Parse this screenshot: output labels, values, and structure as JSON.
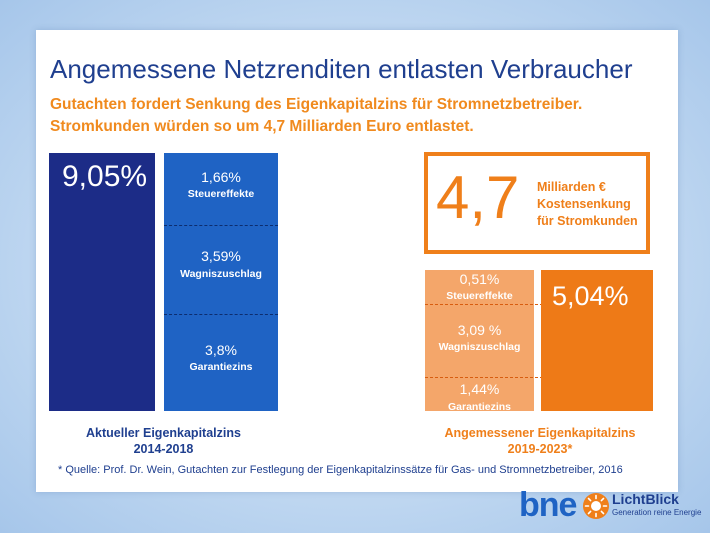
{
  "title": "Angemessene Netzrenditen entlasten Verbraucher",
  "subtitle_lines": [
    "Gutachten fordert Senkung des Eigenkapitalzins für Stromnetzbetreiber.",
    "Stromkunden würden so um 4,7 Milliarden Euro entlastet."
  ],
  "colors": {
    "navy": "#1c2c87",
    "blue": "#1f63c4",
    "orange": "#ee7a17",
    "peach": "#f4a66a",
    "title": "#1f3f8f",
    "accent": "#f08a1e"
  },
  "chart_data": [
    {
      "type": "bar",
      "name_label": "Aktueller Eigenkapitalzins",
      "period": "2014-2018",
      "total": {
        "value": 9.05,
        "label": "9,05%"
      },
      "components": [
        {
          "value": 1.66,
          "label": "1,66%",
          "name": "Steuereffekte"
        },
        {
          "value": 3.59,
          "label": "3,59%",
          "name": "Wagniszuschlag"
        },
        {
          "value": 3.8,
          "label": "3,8%",
          "name": "Garantiezins"
        }
      ]
    },
    {
      "type": "bar",
      "name_label": "Angemessener Eigenkapitalzins",
      "period": "2019-2023*",
      "total": {
        "value": 5.04,
        "label": "5,04%"
      },
      "components": [
        {
          "value": 0.51,
          "label": "0,51%",
          "name": "Steuereffekte"
        },
        {
          "value": 3.09,
          "label": "3,09 %",
          "name": "Wagniszuschlag"
        },
        {
          "value": 1.44,
          "label": "1,44%",
          "name": "Garantiezins"
        }
      ]
    }
  ],
  "savings": {
    "value": "4,7",
    "lines": [
      "Milliarden €",
      "Kostensenkung",
      "für Stromkunden"
    ]
  },
  "footnote": "* Quelle: Prof. Dr. Wein, Gutachten zur Festlegung der Eigenkapitalzinssätze für Gas- und Stromnetzbetreiber, 2016",
  "logos": {
    "bne": "bne",
    "lichtblick": "LichtBlick",
    "lichtblick_tagline": "Generation reine Energie"
  }
}
